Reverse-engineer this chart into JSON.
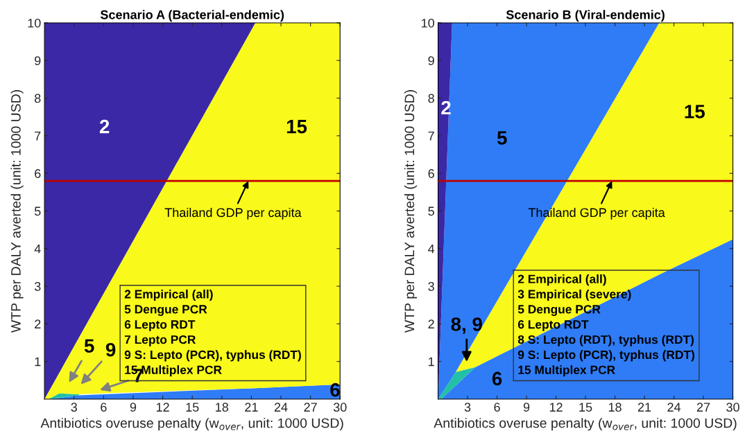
{
  "chart_data": [
    {
      "type": "area",
      "title": "Scenario A (Bacterial-endemic)",
      "xlabel": "Antibiotics overuse penalty (w$_{over}$, unit: 1000 USD)",
      "ylabel": "WTP per DALY averted (unit: 1000 USD)",
      "stacked": true,
      "grid": false,
      "legend": false,
      "x": [
        0,
        0.4,
        1.5,
        3.5,
        21.4,
        30
      ],
      "series": [
        {
          "color": "#2f7cf6",
          "values": [
            null,
            0,
            0.03,
            0.1,
            0.29,
            0.39
          ]
        },
        {
          "color": "#22c1a6",
          "values": [
            null,
            0,
            0.12,
            0.03,
            null,
            null
          ]
        },
        {
          "color": "#f9f91b",
          "values": [
            0,
            0.19,
            0.55,
            1.51,
            9.71,
            9.61
          ]
        },
        {
          "color": "#3a28a6",
          "values": [
            10,
            9.81,
            9.3,
            8.36,
            0,
            null
          ]
        }
      ],
      "xlim": [
        0,
        30
      ],
      "xticks": [
        3,
        6,
        9,
        12,
        15,
        18,
        21,
        24,
        27,
        30
      ],
      "ylim": [
        0,
        10
      ],
      "yticks": [
        1,
        2,
        3,
        4,
        5,
        6,
        7,
        8,
        9,
        10
      ],
      "ref_lines": [
        {
          "axis": "y",
          "value": 5.8,
          "color": "#c00000"
        }
      ],
      "annotations": [
        "2",
        "15",
        "5",
        "9",
        "7",
        "6",
        {
          "text": "Thailand GDP per capita",
          "x": 20.7,
          "y": 5.8
        },
        "2 Empirical (all)",
        "5 Dengue PCR",
        "6 Lepto RDT",
        "7 Lepto PCR",
        "9 S: Lepto (PCR), typhus (RDT)",
        "15 Multiplex PCR"
      ]
    },
    {
      "type": "area",
      "title": "Scenario B (Viral-endemic)",
      "xlabel": "Antibiotics overuse penalty (w$_{over}$, unit: 1000 USD)",
      "ylabel": "WTP per DALY averted (unit: 1000 USD)",
      "stacked": true,
      "grid": false,
      "legend": false,
      "x": [
        0,
        0.3,
        1.43,
        1.8,
        3.8,
        22.5,
        30
      ],
      "series": [
        {
          "color": "#2f7cf6",
          "values": [
            null,
            0,
            0.27,
            0.36,
            0.85,
            3.31,
            4.25
          ]
        },
        {
          "color": "#22c1a6",
          "values": [
            0,
            0.12,
            0.3,
            0.36,
            0,
            null,
            null
          ]
        },
        {
          "color": "#f9f91b",
          "values": [
            null,
            null,
            null,
            0,
            0.77,
            6.69,
            5.75
          ]
        },
        {
          "color": "#2f7cf6",
          "values": [
            0,
            1.98,
            9.43,
            9.28,
            8.38,
            0,
            null
          ]
        },
        {
          "color": "#3a28a6",
          "values": [
            10,
            7.9,
            0,
            null,
            null,
            null,
            null
          ]
        }
      ],
      "xlim": [
        0,
        30
      ],
      "xticks": [
        3,
        6,
        9,
        12,
        15,
        18,
        21,
        24,
        27,
        30
      ],
      "ylim": [
        0,
        10
      ],
      "yticks": [
        1,
        2,
        3,
        4,
        5,
        6,
        7,
        8,
        9,
        10
      ],
      "ref_lines": [
        {
          "axis": "y",
          "value": 5.8,
          "color": "#c00000"
        }
      ],
      "annotations": [
        "2",
        "5",
        "15",
        "8, 9",
        "6",
        {
          "text": "Thailand GDP per capita",
          "x": 17.7,
          "y": 5.8
        },
        "2 Empirical (all)",
        "3 Empirical (severe)",
        "5 Dengue PCR",
        "6 Lepto RDT",
        "8 S: Lepto (RDT), typhus (RDT)",
        "9 S: Lepto (PCR), typhus (RDT)",
        "15 Multiplex PCR"
      ]
    }
  ]
}
